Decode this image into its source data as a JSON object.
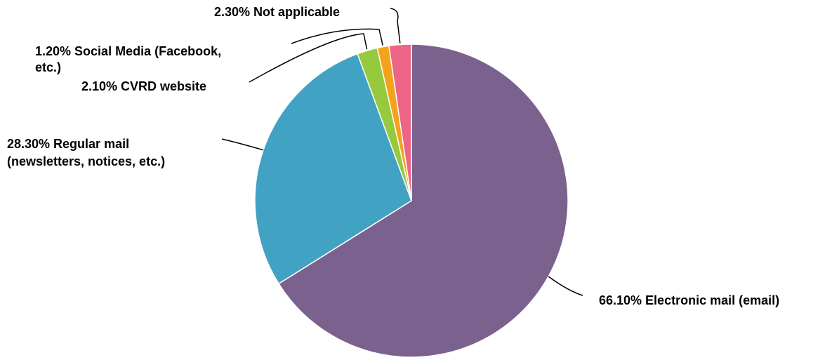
{
  "chart_data": {
    "type": "pie",
    "start_angle_deg": 0,
    "direction": "clockwise",
    "slices": [
      {
        "label": "Electronic mail (email)",
        "value": 66.1,
        "value_label": "66.10%",
        "color": "#7B618E"
      },
      {
        "label": "Regular mail (newsletters, notices, etc.)",
        "value": 28.3,
        "value_label": "28.30%",
        "color": "#41A2C3"
      },
      {
        "label": "CVRD website",
        "value": 2.1,
        "value_label": "2.10%",
        "color": "#97C93D"
      },
      {
        "label": "Social Media (Facebook, etc.)",
        "value": 1.2,
        "value_label": "1.20%",
        "color": "#F5A21B"
      },
      {
        "label": "Not applicable",
        "value": 2.3,
        "value_label": "2.30%",
        "color": "#EC6587"
      }
    ],
    "legend": "none",
    "data_labels": {
      "electronic": [
        "66.10% Electronic mail (email)"
      ],
      "regular": [
        "28.30% Regular mail",
        "(newsletters, notices, etc.)"
      ],
      "cvrd": [
        "2.10% CVRD website"
      ],
      "social": [
        "1.20% Social Media (Facebook,",
        "etc.)"
      ],
      "not_applicable": [
        "2.30% Not applicable"
      ]
    }
  }
}
